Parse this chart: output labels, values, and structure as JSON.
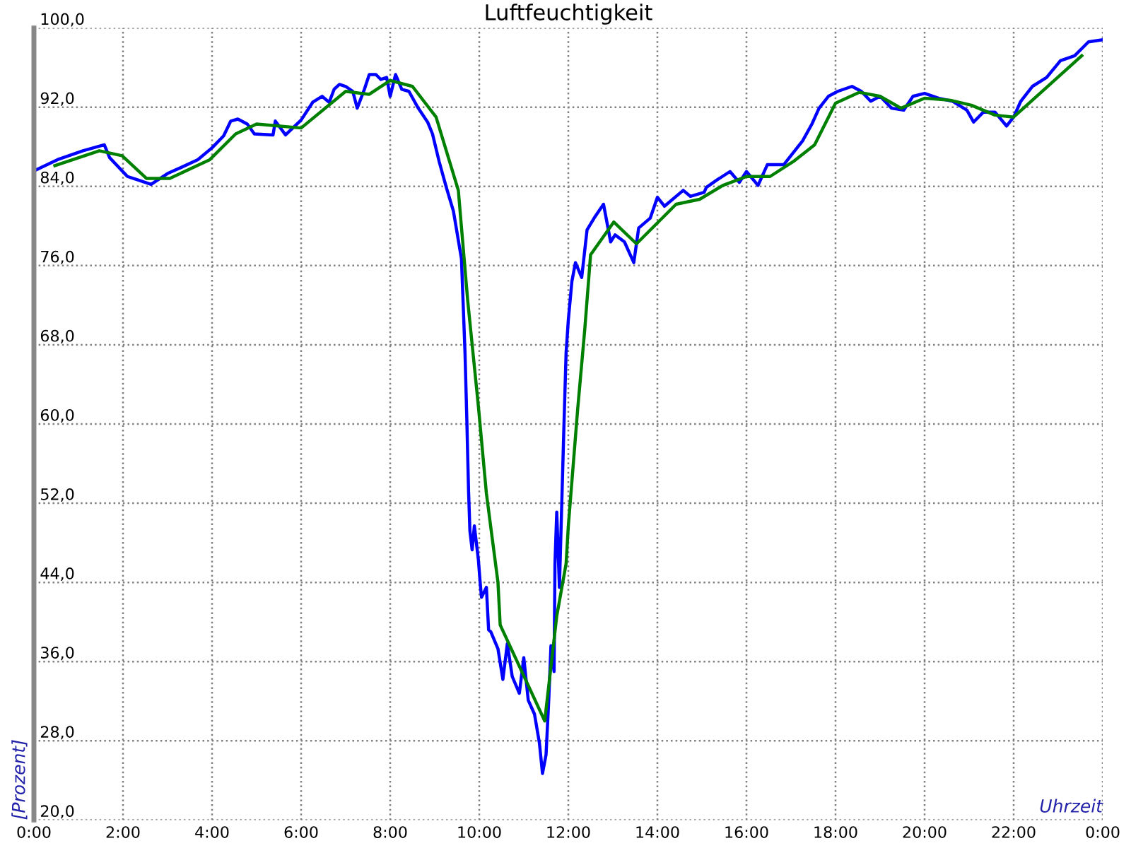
{
  "chart_data": {
    "type": "line",
    "title": "Luftfeuchtigkeit",
    "xlabel": "Uhrzeit",
    "ylabel": "[Prozent]",
    "xlim": [
      0,
      24
    ],
    "xticks": [
      {
        "value": 0,
        "label": "0:00"
      },
      {
        "value": 2,
        "label": "2:00"
      },
      {
        "value": 4,
        "label": "4:00"
      },
      {
        "value": 6,
        "label": "6:00"
      },
      {
        "value": 8,
        "label": "8:00"
      },
      {
        "value": 10,
        "label": "10:00"
      },
      {
        "value": 12,
        "label": "12:00"
      },
      {
        "value": 14,
        "label": "14:00"
      },
      {
        "value": 16,
        "label": "16:00"
      },
      {
        "value": 18,
        "label": "18:00"
      },
      {
        "value": 20,
        "label": "20:00"
      },
      {
        "value": 22,
        "label": "22:00"
      },
      {
        "value": 24,
        "label": "0:00"
      }
    ],
    "ylim": [
      20,
      100
    ],
    "yticks": [
      {
        "value": 20,
        "label": "20,0"
      },
      {
        "value": 28,
        "label": "28,0"
      },
      {
        "value": 36,
        "label": "36,0"
      },
      {
        "value": 44,
        "label": "44,0"
      },
      {
        "value": 52,
        "label": "52,0"
      },
      {
        "value": 60,
        "label": "60,0"
      },
      {
        "value": 68,
        "label": "68,0"
      },
      {
        "value": 76,
        "label": "76,0"
      },
      {
        "value": 84,
        "label": "84,0"
      },
      {
        "value": 92,
        "label": "92,0"
      },
      {
        "value": 100,
        "label": "100,0"
      }
    ],
    "grid": true,
    "line_style": "solid",
    "marker": "none",
    "series": [
      {
        "color": "#0000ff",
        "x": [
          0.02,
          0.53,
          1.1,
          1.58,
          1.7,
          2.1,
          2.3,
          2.63,
          3.0,
          3.3,
          3.68,
          4.0,
          4.26,
          4.42,
          4.58,
          4.79,
          4.95,
          5.37,
          5.42,
          5.65,
          6.0,
          6.26,
          6.47,
          6.63,
          6.74,
          6.86,
          7.0,
          7.16,
          7.26,
          7.42,
          7.53,
          7.68,
          7.79,
          7.92,
          8.0,
          8.12,
          8.26,
          8.42,
          8.63,
          8.84,
          8.95,
          9.1,
          9.26,
          9.42,
          9.6,
          9.68,
          9.72,
          9.76,
          9.79,
          9.84,
          9.89,
          9.98,
          10.02,
          10.05,
          10.16,
          10.21,
          10.26,
          10.42,
          10.53,
          10.63,
          10.74,
          10.9,
          11.0,
          11.1,
          11.24,
          11.35,
          11.42,
          11.5,
          11.56,
          11.61,
          11.68,
          11.7,
          11.74,
          11.8,
          11.9,
          11.95,
          12.0,
          12.08,
          12.16,
          12.3,
          12.42,
          12.58,
          12.79,
          12.95,
          13.05,
          13.26,
          13.47,
          13.58,
          13.84,
          14.0,
          14.16,
          14.58,
          14.74,
          15.05,
          15.1,
          15.32,
          15.63,
          15.84,
          16.0,
          16.26,
          16.47,
          16.84,
          17.05,
          17.26,
          17.47,
          17.63,
          17.84,
          18.05,
          18.37,
          18.58,
          18.79,
          19.0,
          19.26,
          19.53,
          19.74,
          20.0,
          20.32,
          20.63,
          20.95,
          21.1,
          21.32,
          21.58,
          21.84,
          22.0,
          22.16,
          22.42,
          22.74,
          23.05,
          23.37,
          23.68,
          23.98
        ],
        "values": [
          85.6,
          86.7,
          87.6,
          88.2,
          86.9,
          85.0,
          84.7,
          84.2,
          85.3,
          85.9,
          86.7,
          87.9,
          89.1,
          90.6,
          90.8,
          90.3,
          89.3,
          89.2,
          90.6,
          89.2,
          90.7,
          92.5,
          93.1,
          92.5,
          93.8,
          94.3,
          94.1,
          93.6,
          91.9,
          93.8,
          95.3,
          95.3,
          94.8,
          95.0,
          93.1,
          95.3,
          93.8,
          93.6,
          91.9,
          90.5,
          89.3,
          86.5,
          83.9,
          81.5,
          76.7,
          67.2,
          60.6,
          53.2,
          49.2,
          47.3,
          49.7,
          46.3,
          44.0,
          42.5,
          43.5,
          39.2,
          39.0,
          37.3,
          34.2,
          37.8,
          34.5,
          32.8,
          36.4,
          32.1,
          30.7,
          27.8,
          24.7,
          26.6,
          32.1,
          37.6,
          35.0,
          45.9,
          51.1,
          43.5,
          59.6,
          67.2,
          70.5,
          74.4,
          76.3,
          74.8,
          79.6,
          80.8,
          82.2,
          78.4,
          79.1,
          78.4,
          76.3,
          79.8,
          80.8,
          82.9,
          82.0,
          83.6,
          83.0,
          83.4,
          83.9,
          84.6,
          85.5,
          84.4,
          85.5,
          84.1,
          86.2,
          86.2,
          87.4,
          88.6,
          90.3,
          91.9,
          93.1,
          93.6,
          94.1,
          93.6,
          92.6,
          93.1,
          91.9,
          91.7,
          93.1,
          93.4,
          92.9,
          92.6,
          91.7,
          90.5,
          91.5,
          91.5,
          90.1,
          91.0,
          92.6,
          94.1,
          95.0,
          96.7,
          97.2,
          98.6,
          98.8
        ]
      },
      {
        "color": "#008000",
        "x": [
          0.47,
          1.47,
          1.98,
          2.53,
          3.05,
          3.95,
          4.53,
          5.0,
          6.0,
          7.0,
          7.53,
          8.0,
          8.5,
          9.03,
          9.53,
          9.74,
          9.98,
          10.16,
          10.42,
          10.47,
          11.47,
          11.74,
          11.95,
          12.0,
          12.21,
          12.37,
          12.5,
          13.02,
          13.53,
          14.42,
          14.95,
          15.47,
          16.0,
          16.53,
          17.05,
          17.53,
          18.0,
          18.53,
          19.0,
          19.47,
          20.0,
          20.58,
          21.05,
          21.58,
          22.0,
          23.53
        ],
        "values": [
          86.1,
          87.6,
          87.1,
          84.8,
          84.8,
          86.7,
          89.3,
          90.3,
          89.9,
          93.6,
          93.3,
          94.7,
          94.1,
          91.0,
          83.6,
          72.5,
          61.8,
          53.0,
          44.0,
          39.7,
          30.0,
          40.6,
          45.9,
          49.7,
          61.5,
          69.6,
          77.1,
          80.4,
          78.2,
          82.2,
          82.7,
          84.1,
          85.0,
          85.0,
          86.5,
          88.2,
          92.4,
          93.5,
          93.1,
          91.9,
          92.9,
          92.7,
          92.2,
          91.2,
          91.0,
          97.2
        ]
      }
    ]
  }
}
